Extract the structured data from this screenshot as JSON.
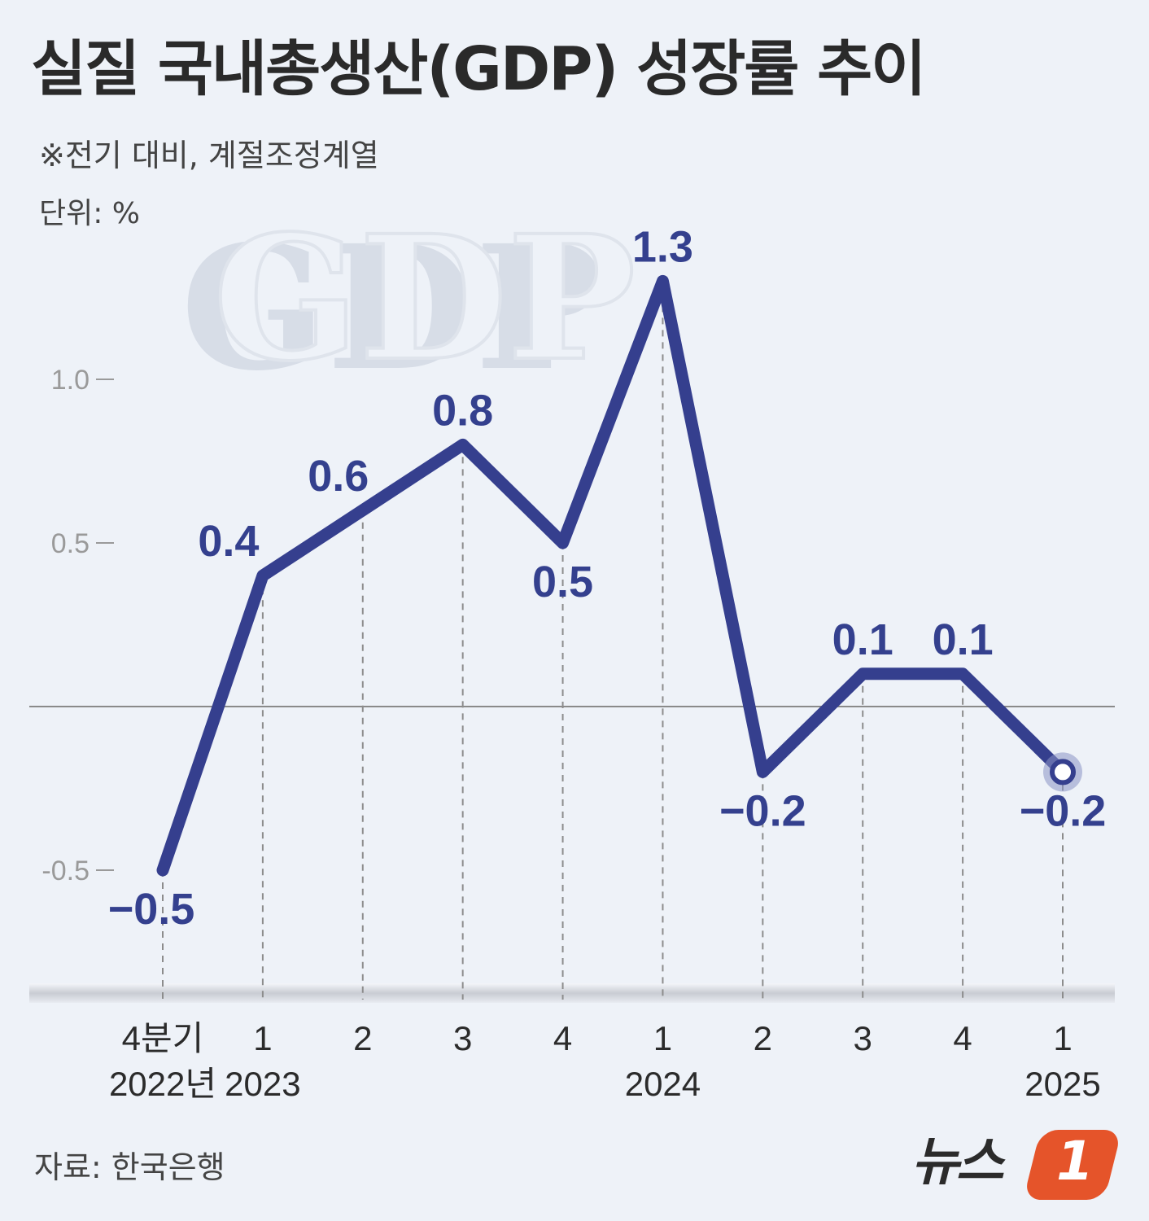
{
  "title": "실질 국내총생산(GDP) 성장률 추이",
  "subtitle": "※전기 대비, 계절조정계열",
  "unit": "단위: %",
  "source": "자료: 한국은행",
  "watermark": "GDP",
  "logo": {
    "text": "뉴스",
    "badge": "1"
  },
  "colors": {
    "line": "#353f8e",
    "accent": "#e5542a",
    "background": "#eef2f8"
  },
  "chart_data": {
    "type": "line",
    "title": "실질 국내총생산(GDP) 성장률 추이",
    "ylabel": "%",
    "ylim": [
      -0.5,
      1.3
    ],
    "yticks": [
      {
        "value": 1.0,
        "label": "1.0"
      },
      {
        "value": 0.5,
        "label": "0.5"
      },
      {
        "value": -0.5,
        "label": "-0.5"
      }
    ],
    "categories": [
      {
        "quarter": "4분기",
        "year": "2022년"
      },
      {
        "quarter": "1",
        "year": "2023"
      },
      {
        "quarter": "2",
        "year": ""
      },
      {
        "quarter": "3",
        "year": ""
      },
      {
        "quarter": "4",
        "year": ""
      },
      {
        "quarter": "1",
        "year": "2024"
      },
      {
        "quarter": "2",
        "year": ""
      },
      {
        "quarter": "3",
        "year": ""
      },
      {
        "quarter": "4",
        "year": ""
      },
      {
        "quarter": "1",
        "year": "2025"
      }
    ],
    "values": [
      -0.5,
      0.4,
      0.6,
      0.8,
      0.5,
      1.3,
      -0.2,
      0.1,
      0.1,
      -0.2
    ],
    "labels": [
      "−0.5",
      "0.4",
      "0.6",
      "0.8",
      "0.5",
      "1.3",
      "−0.2",
      "0.1",
      "0.1",
      "−0.2"
    ],
    "label_positions": [
      "below",
      "above",
      "above",
      "above",
      "below",
      "above",
      "below",
      "above",
      "above",
      "below"
    ],
    "baseline": 0,
    "highlight_last": true
  }
}
